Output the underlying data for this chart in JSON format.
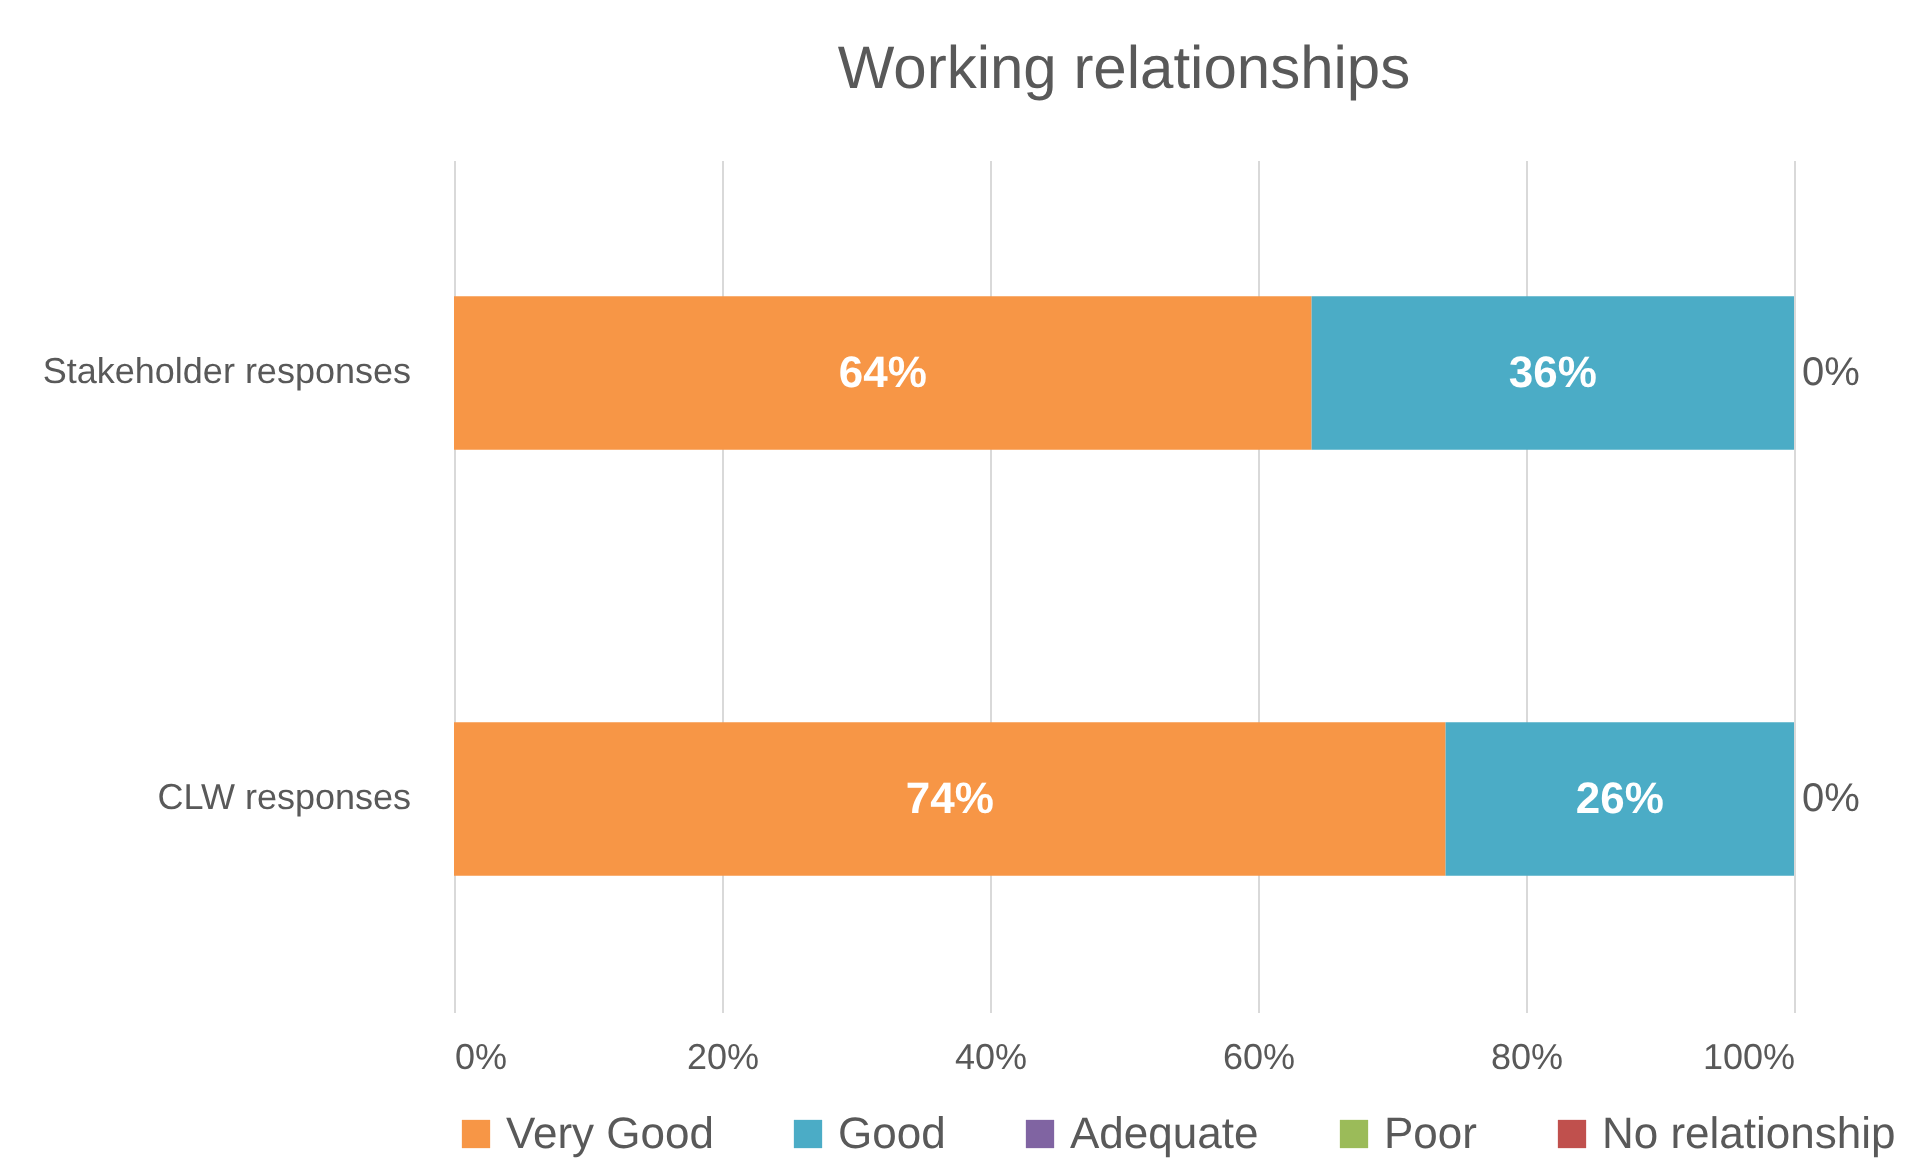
{
  "chart_data": {
    "type": "bar",
    "orientation": "horizontal",
    "stacked": true,
    "title": "Working relationships",
    "categories": [
      "Stakeholder responses",
      "CLW responses"
    ],
    "series": [
      {
        "name": "Very Good",
        "color": "#f79646",
        "values": [
          64,
          74
        ],
        "value_labels": [
          "64%",
          "74%"
        ]
      },
      {
        "name": "Good",
        "color": "#4bacc6",
        "values": [
          36,
          26
        ],
        "value_labels": [
          "36%",
          "26%"
        ]
      },
      {
        "name": "Adequate",
        "color": "#8064a2",
        "values": [
          0,
          0
        ],
        "value_labels": [
          "0%",
          "0%"
        ]
      },
      {
        "name": "Poor",
        "color": "#9bbb59",
        "values": [
          0,
          0
        ]
      },
      {
        "name": "No relationship",
        "color": "#c0504d",
        "values": [
          0,
          0
        ]
      }
    ],
    "xlim": [
      0,
      100
    ],
    "xticks": [
      {
        "value": 0,
        "label": "0%"
      },
      {
        "value": 20,
        "label": "20%"
      },
      {
        "value": 40,
        "label": "40%"
      },
      {
        "value": 60,
        "label": "60%"
      },
      {
        "value": 80,
        "label": "80%"
      },
      {
        "value": 100,
        "label": "100%"
      }
    ],
    "grid": "x",
    "legend": "bottom"
  }
}
